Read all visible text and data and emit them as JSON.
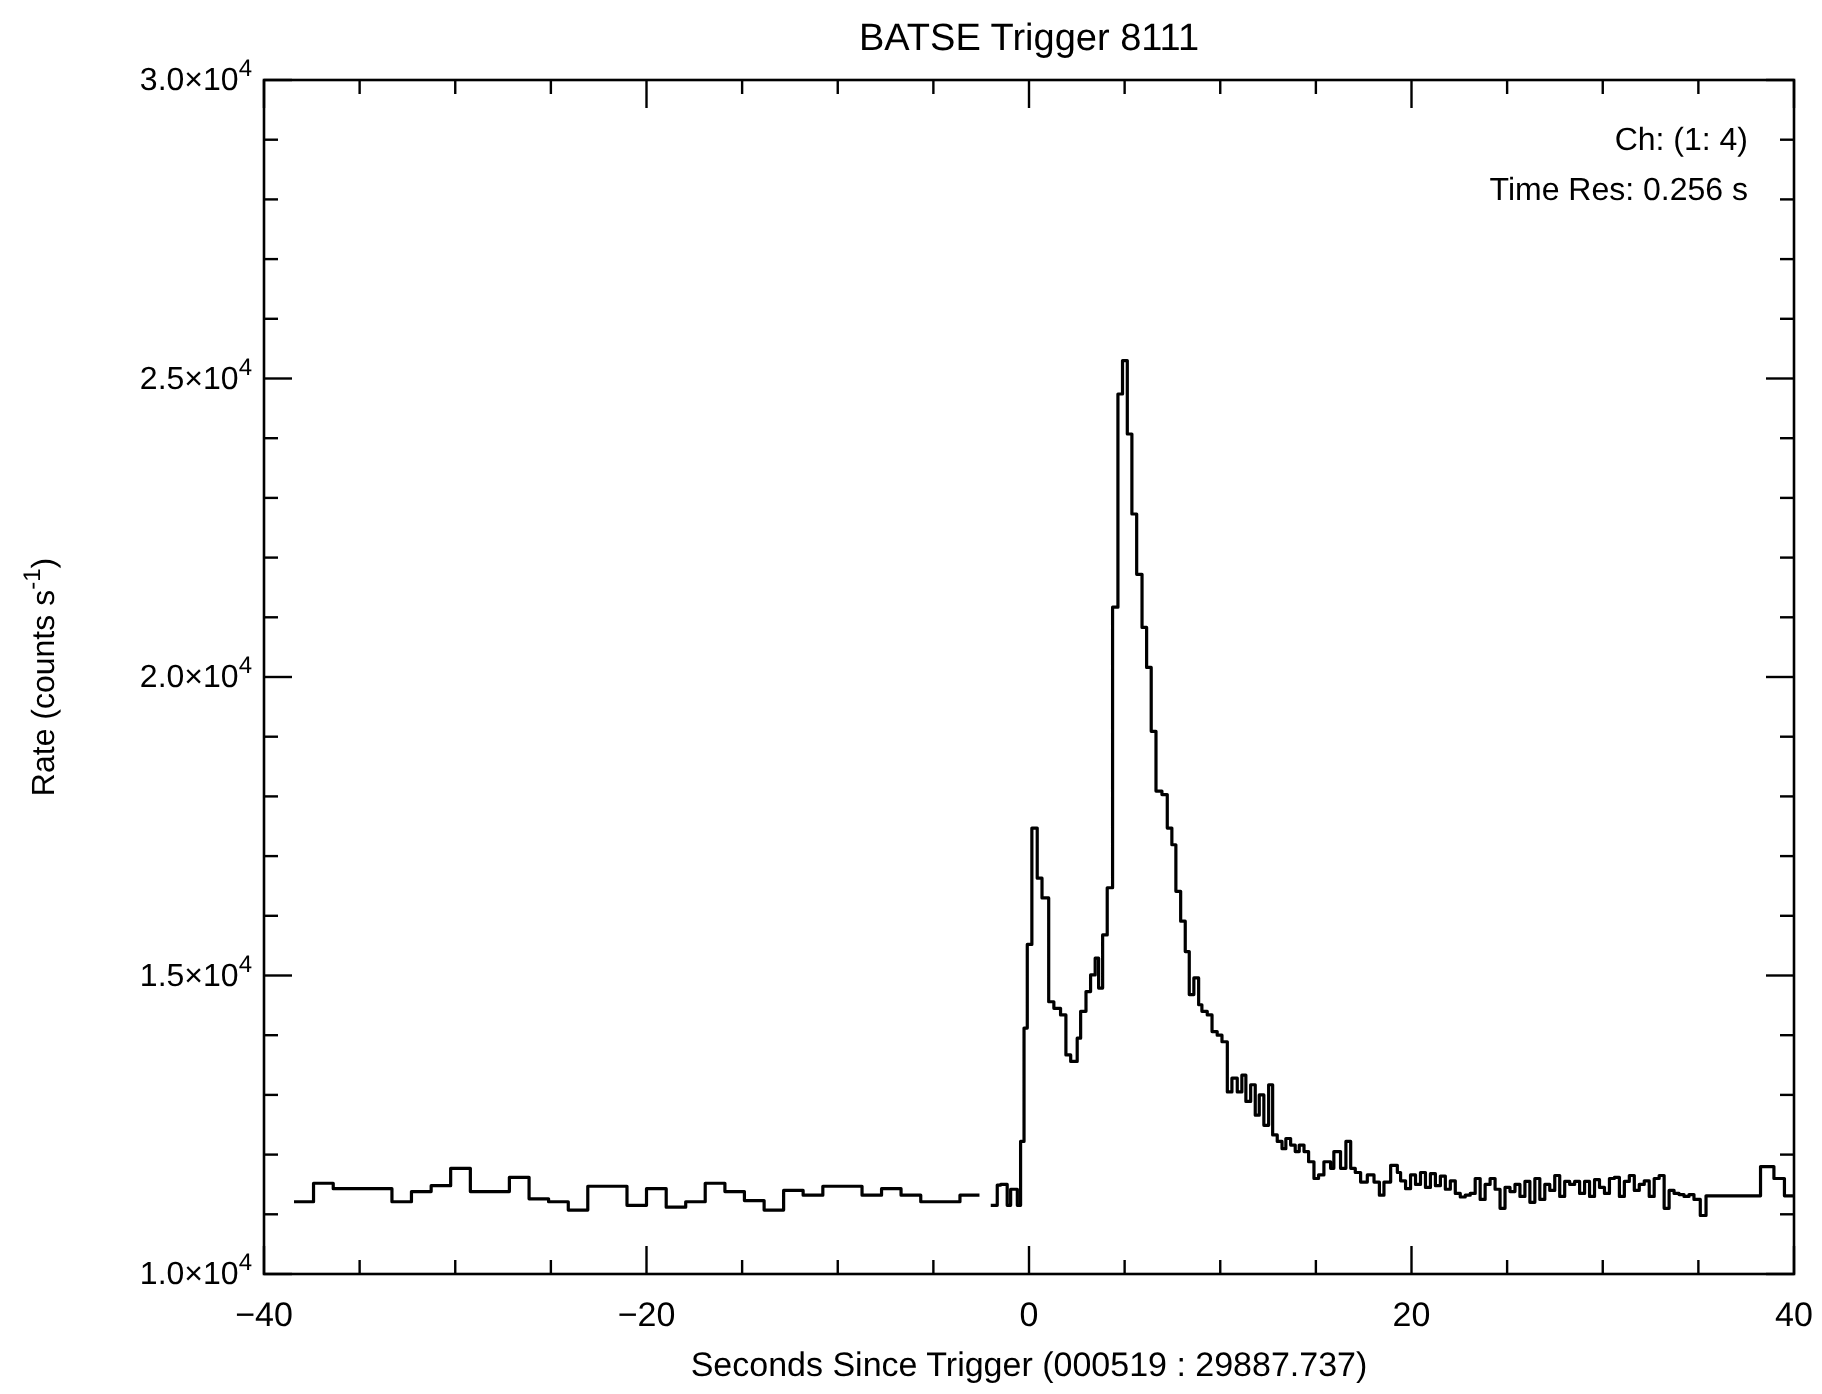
{
  "chart_data": {
    "type": "step",
    "title": "BATSE Trigger 8111",
    "xlabel": "Seconds Since Trigger (000519 : 29887.737)",
    "ylabel": "Rate (counts s$^{-1}$)",
    "annotations": [
      "Ch: (1: 4)",
      "Time Res: 0.256 s"
    ],
    "xlim": [
      -40,
      40
    ],
    "xticks": [
      -40,
      {
        "value": -35,
        "label": null
      },
      {
        "value": -30,
        "label": null
      },
      {
        "value": -25,
        "label": null
      },
      -20,
      {
        "value": -15,
        "label": null
      },
      {
        "value": -10,
        "label": null
      },
      {
        "value": -5,
        "label": null
      },
      0,
      {
        "value": 5,
        "label": null
      },
      {
        "value": 10,
        "label": null
      },
      {
        "value": 15,
        "label": null
      },
      20,
      {
        "value": 25,
        "label": null
      },
      {
        "value": 30,
        "label": null
      },
      {
        "value": 35,
        "label": null
      },
      40
    ],
    "ylim": [
      10000,
      30000
    ],
    "yticks": [
      {
        "value": 10000,
        "label": "1.0×10$^{4}$"
      },
      {
        "value": 11000,
        "label": null
      },
      {
        "value": 12000,
        "label": null
      },
      {
        "value": 13000,
        "label": null
      },
      {
        "value": 14000,
        "label": null
      },
      {
        "value": 15000,
        "label": "1.5×10$^{4}$"
      },
      {
        "value": 16000,
        "label": null
      },
      {
        "value": 17000,
        "label": null
      },
      {
        "value": 18000,
        "label": null
      },
      {
        "value": 19000,
        "label": null
      },
      {
        "value": 20000,
        "label": "2.0×10$^{4}$"
      },
      {
        "value": 21000,
        "label": null
      },
      {
        "value": 22000,
        "label": null
      },
      {
        "value": 23000,
        "label": null
      },
      {
        "value": 24000,
        "label": null
      },
      {
        "value": 25000,
        "label": "2.5×10$^{4}$"
      },
      {
        "value": 26000,
        "label": null
      },
      {
        "value": 27000,
        "label": null
      },
      {
        "value": 28000,
        "label": null
      },
      {
        "value": 29000,
        "label": null
      },
      {
        "value": 30000,
        "label": "3.0×10$^{4}$"
      }
    ],
    "series": [
      {
        "color": "#000000",
        "x": [
          -38.43,
          -37.41,
          -36.38,
          -35.36,
          -34.33,
          -33.31,
          -32.29,
          -31.26,
          -30.24,
          -29.21,
          -28.19,
          -27.17,
          -26.14,
          -25.12,
          -24.09,
          -23.07,
          -22.05,
          -21.02,
          -20.0,
          -18.97,
          -17.95,
          -16.93,
          -15.9,
          -14.88,
          -13.85,
          -12.83,
          -11.81,
          -10.78,
          -9.76,
          -8.73,
          -7.71,
          -6.69,
          -5.66,
          -4.64,
          -3.61,
          -2.59
        ],
        "values": [
          11210,
          11520,
          11430,
          11430,
          11430,
          11210,
          11380,
          11480,
          11770,
          11380,
          11380,
          11620,
          11260,
          11210,
          11070,
          11470,
          11470,
          11150,
          11430,
          11120,
          11210,
          11520,
          11380,
          11230,
          11070,
          11400,
          11320,
          11470,
          11470,
          11320,
          11430,
          11320,
          11210,
          11210,
          11320,
          11320
        ]
      },
      {
        "color": "#000000",
        "x": [
          -2.0,
          -1.66,
          -1.48,
          -1.14,
          -0.96,
          -0.61,
          -0.44,
          -0.26,
          -0.09,
          0.15,
          0.43,
          0.68,
          1.03,
          1.3,
          1.65,
          1.93,
          2.18,
          2.52,
          2.7,
          2.98,
          3.22,
          3.46,
          3.64,
          3.85,
          4.09,
          4.37,
          4.65,
          4.89,
          5.14,
          5.38,
          5.63,
          5.91,
          6.15,
          6.39,
          6.64,
          6.95,
          7.23,
          7.47,
          7.68,
          7.93,
          8.17,
          8.38,
          8.62,
          8.87,
          9.04,
          9.32,
          9.57,
          9.84,
          10.09,
          10.37,
          10.61,
          10.89,
          11.13,
          11.34,
          11.59,
          11.83,
          12.04,
          12.28,
          12.53,
          12.74,
          12.98,
          13.23,
          13.43,
          13.68,
          13.92,
          14.13,
          14.38,
          14.62,
          14.9,
          15.14,
          15.42,
          15.77,
          15.94,
          16.29,
          16.57,
          16.82,
          17.06,
          17.34,
          17.69,
          18.04,
          18.32,
          18.56,
          18.91,
          19.26,
          19.43,
          19.69,
          19.95,
          20.21,
          20.47,
          20.73,
          20.99,
          21.25,
          21.51,
          21.77,
          22.03,
          22.29,
          22.55,
          22.81,
          23.07,
          23.33,
          23.59,
          23.85,
          24.11,
          24.37,
          24.63,
          24.89,
          25.15,
          25.41,
          25.67,
          25.93,
          26.19,
          26.45,
          26.71,
          26.97,
          27.23,
          27.49,
          27.75,
          28.01,
          28.27,
          28.53,
          28.79,
          29.05,
          29.31,
          29.57,
          29.83,
          30.09,
          30.35,
          30.61,
          30.87,
          31.13,
          31.39,
          31.65,
          31.91,
          32.17,
          32.43,
          32.69,
          32.95,
          33.21,
          33.47,
          33.73,
          33.99,
          34.25,
          34.51,
          34.77,
          35.1,
          35.4,
          38.25,
          38.95,
          39.5,
          40.0
        ],
        "values": [
          11150,
          11490,
          11500,
          11150,
          11420,
          11150,
          12220,
          14120,
          15520,
          17470,
          16630,
          16300,
          14560,
          14450,
          14340,
          13670,
          13560,
          13950,
          14400,
          14730,
          15010,
          15290,
          14790,
          15680,
          16470,
          21170,
          24740,
          25300,
          24070,
          22730,
          21720,
          20830,
          20160,
          19090,
          18090,
          18030,
          17470,
          17190,
          16410,
          15910,
          15400,
          14680,
          14960,
          14510,
          14400,
          14340,
          14060,
          14000,
          13890,
          13050,
          13280,
          13050,
          13330,
          12890,
          13170,
          12660,
          13000,
          12490,
          13170,
          12330,
          12220,
          12100,
          12270,
          12160,
          12050,
          12160,
          12050,
          11880,
          11600,
          11660,
          11880,
          11770,
          12050,
          11770,
          12220,
          11770,
          11700,
          11540,
          11660,
          11540,
          11320,
          11540,
          11820,
          11700,
          11560,
          11430,
          11660,
          11500,
          11700,
          11450,
          11680,
          11480,
          11640,
          11420,
          11560,
          11350,
          11290,
          11320,
          11350,
          11600,
          11250,
          11500,
          11600,
          11420,
          11100,
          11450,
          11380,
          11500,
          11300,
          11550,
          11200,
          11600,
          11250,
          11500,
          11400,
          11650,
          11300,
          11550,
          11500,
          11550,
          11350,
          11550,
          11300,
          11580,
          11450,
          11350,
          11600,
          11620,
          11300,
          11550,
          11650,
          11400,
          11500,
          11560,
          11300,
          11600,
          11650,
          11100,
          11400,
          11350,
          11330,
          11300,
          11330,
          11250,
          10980,
          11310,
          11800,
          11600,
          11310,
          11310
        ]
      }
    ]
  }
}
